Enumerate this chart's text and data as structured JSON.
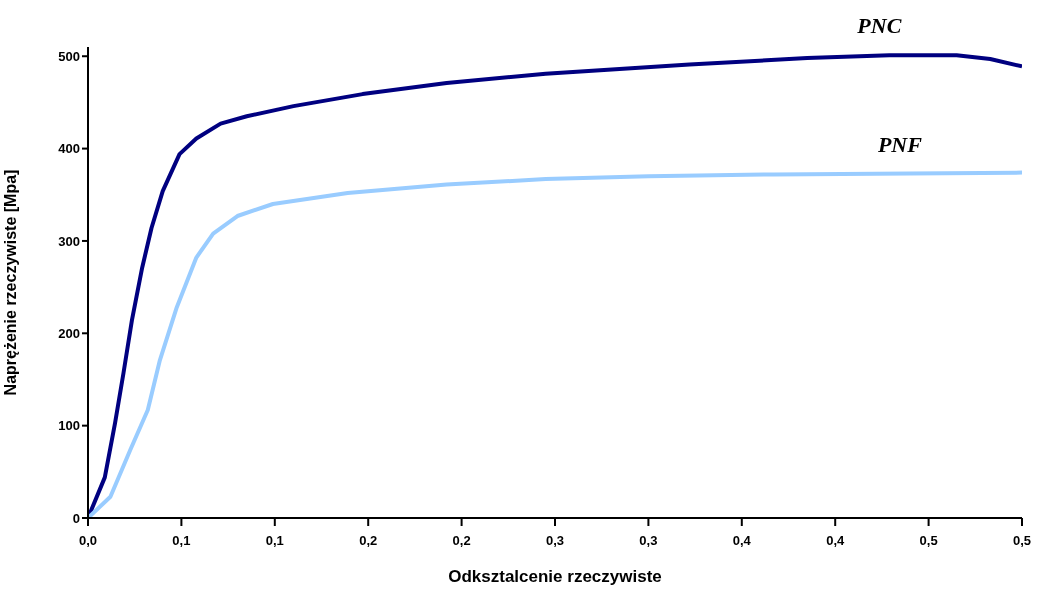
{
  "chart_data": {
    "type": "line",
    "xlabel": "Odksztalcenie rzeczywiste",
    "ylabel": "Naprężenie rzeczywiste [Mpa]",
    "xlim": [
      0,
      0.5
    ],
    "xticks": [
      {
        "value": 0,
        "label": "0,0"
      },
      {
        "value": 0.05,
        "label": "0,1"
      },
      {
        "value": 0.1,
        "label": "0,1"
      },
      {
        "value": 0.15,
        "label": "0,2"
      },
      {
        "value": 0.2,
        "label": "0,2"
      },
      {
        "value": 0.25,
        "label": "0,3"
      },
      {
        "value": 0.3,
        "label": "0,3"
      },
      {
        "value": 0.35,
        "label": "0,4"
      },
      {
        "value": 0.4,
        "label": "0,4"
      },
      {
        "value": 0.45,
        "label": "0,5"
      },
      {
        "value": 0.5,
        "label": "0,5"
      }
    ],
    "ylim": [
      0,
      510
    ],
    "yticks": [
      0,
      100,
      200,
      300,
      400,
      500
    ],
    "grid": false,
    "legend": false,
    "marker": "none",
    "line_style": "solid",
    "series": [
      {
        "name": "PNC",
        "color": "#000080",
        "x": [
          0,
          0.009,
          0.0145,
          0.019,
          0.0235,
          0.029,
          0.034,
          0.04,
          0.049,
          0.058,
          0.071,
          0.085,
          0.11,
          0.147,
          0.192,
          0.245,
          0.322,
          0.385,
          0.429,
          0.465,
          0.483,
          0.5
        ],
        "values": [
          0,
          44,
          103,
          157,
          214,
          271,
          314,
          354,
          394,
          411,
          427,
          435,
          446,
          459,
          471,
          481,
          491,
          498,
          501,
          501,
          497,
          489
        ]
      },
      {
        "name": "PNF",
        "color": "#99ccff",
        "x": [
          0,
          0.012,
          0.0225,
          0.032,
          0.0385,
          0.0475,
          0.058,
          0.067,
          0.08,
          0.099,
          0.139,
          0.192,
          0.245,
          0.3,
          0.367,
          0.44,
          0.5
        ],
        "values": [
          0,
          23,
          73,
          117,
          171,
          228,
          282,
          308,
          327,
          340,
          352,
          361,
          367,
          370,
          372,
          373,
          374
        ]
      }
    ]
  }
}
